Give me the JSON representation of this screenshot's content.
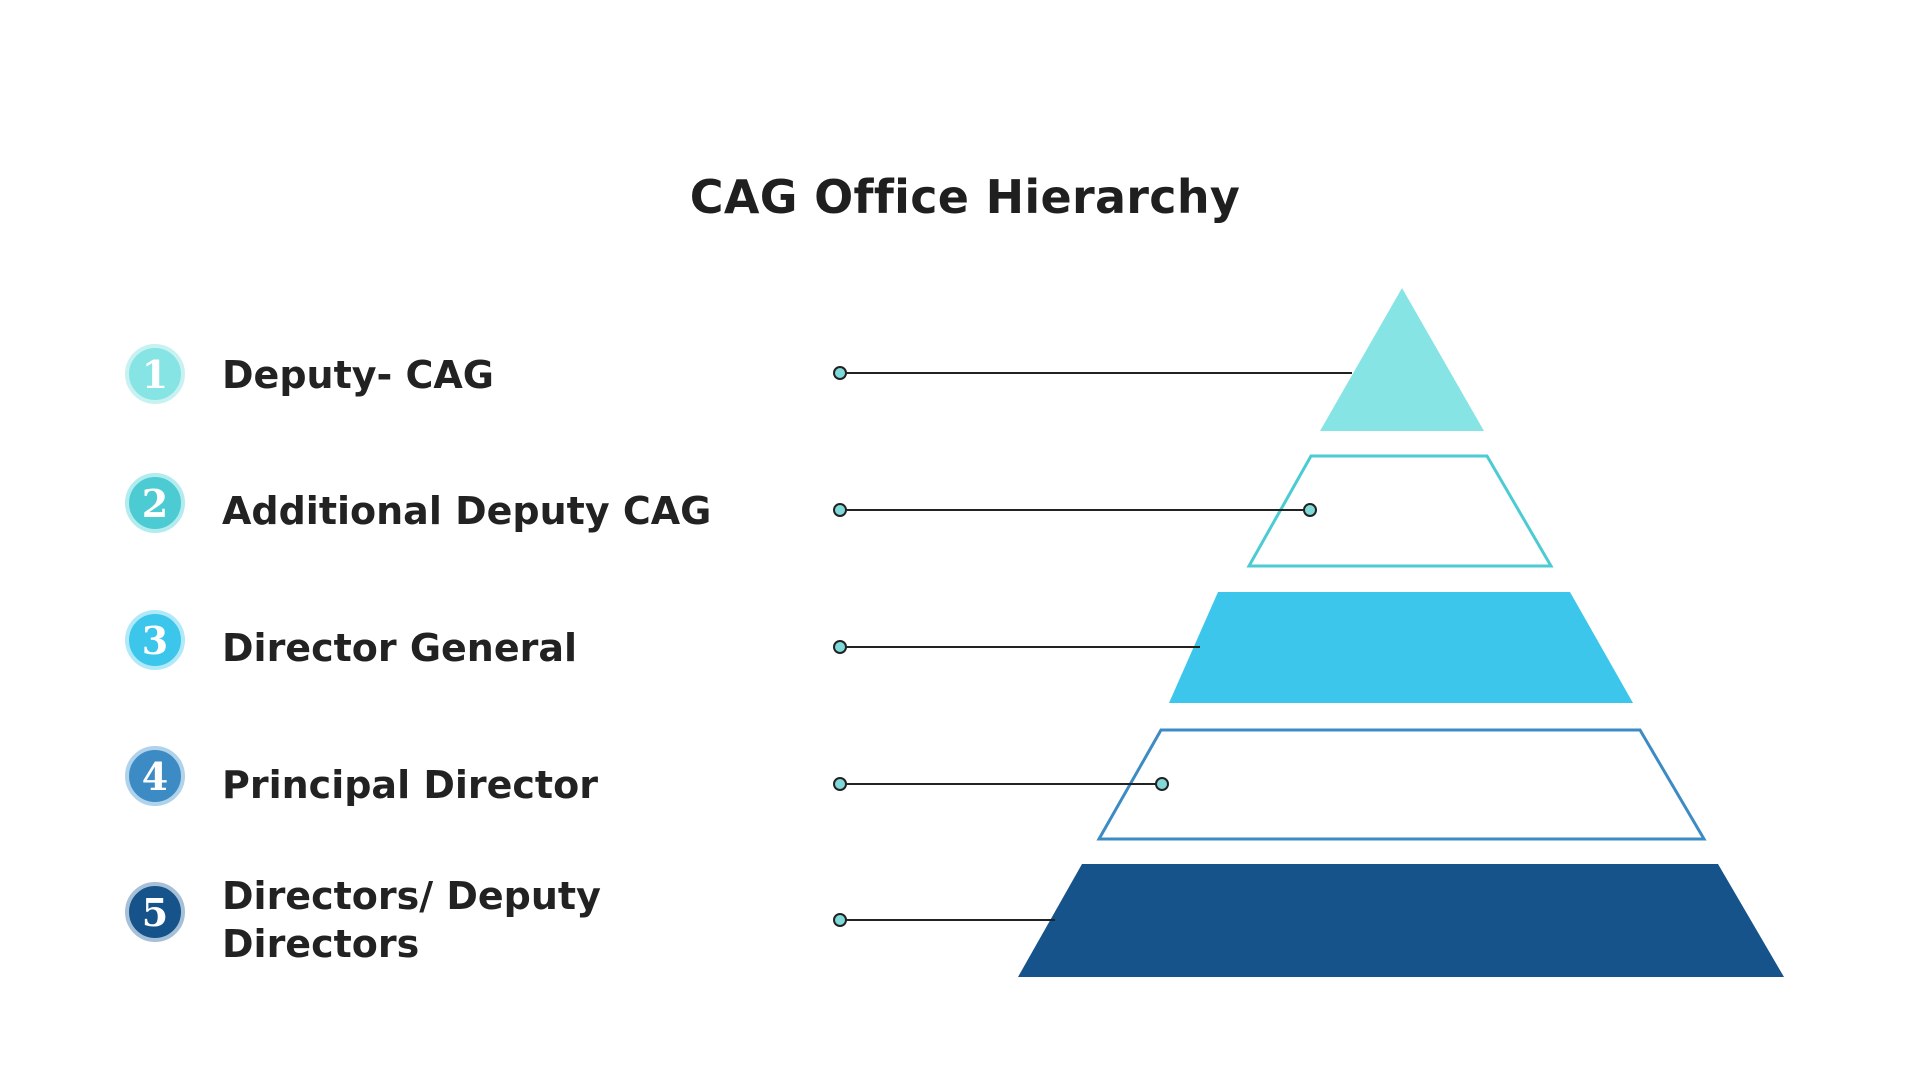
{
  "title": "CAG Office Hierarchy",
  "levels": [
    {
      "number": "1",
      "label": "Deputy- CAG",
      "badge_color": "#86e4e4",
      "tier_color": "#86e4e4",
      "tier_style": "filled"
    },
    {
      "number": "2",
      "label": "Additional Deputy CAG",
      "badge_color": "#4ccbd3",
      "tier_color": "#4ccbd3",
      "tier_style": "outline"
    },
    {
      "number": "3",
      "label": "Director General",
      "badge_color": "#3cc6ec",
      "tier_color": "#3cc6ec",
      "tier_style": "filled"
    },
    {
      "number": "4",
      "label": "Principal Director",
      "badge_color": "#3d8bc4",
      "tier_color": "#3d8bc4",
      "tier_style": "outline"
    },
    {
      "number": "5",
      "label": "Directors/ Deputy Directors",
      "badge_color": "#16538a",
      "tier_color": "#16538a",
      "tier_style": "filled"
    }
  ],
  "connector_color": "#222222",
  "connector_dot_color": "#7fd9d9"
}
